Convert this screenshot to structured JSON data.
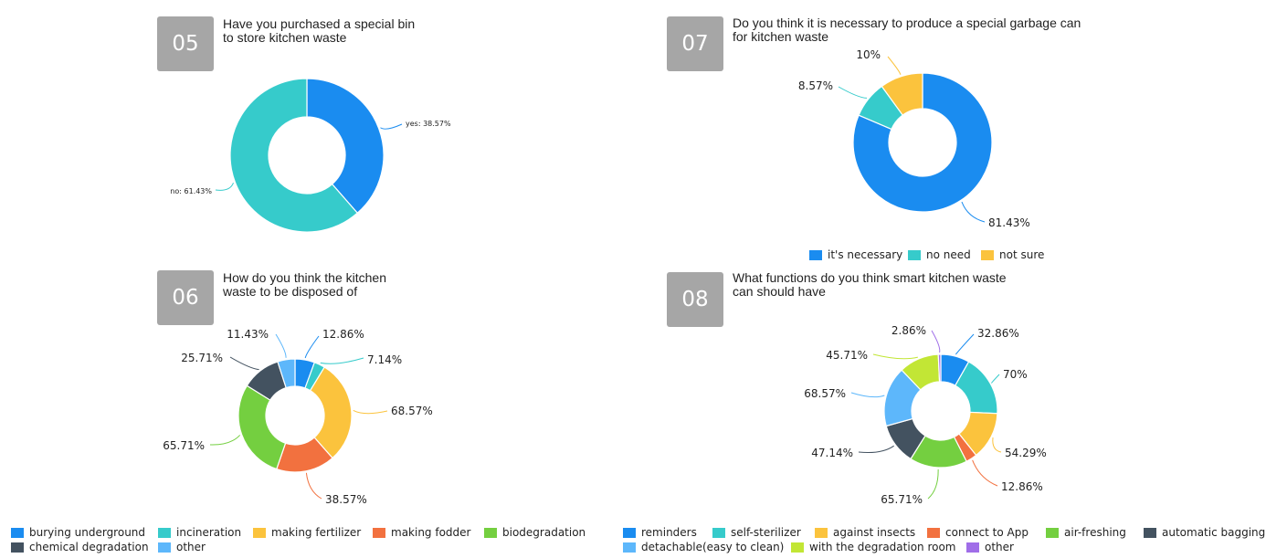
{
  "panels": [
    {
      "number": "05",
      "title": "Have you purchased a special bin\nto store kitchen waste"
    },
    {
      "number": "07",
      "title": "Do you think it is necessary to produce a special garbage can\nfor kitchen waste"
    },
    {
      "number": "06",
      "title": "How do you think the kitchen\nwaste to be disposed of"
    },
    {
      "number": "08",
      "title": "What functions do you think smart kitchen waste\ncan should have"
    }
  ],
  "colors": {
    "blue": "#1a8cf0",
    "teal": "#36cbcb",
    "yellow": "#fbc33d",
    "orange": "#f2713f",
    "green": "#74cf40",
    "slate": "#435260",
    "lightblue": "#5db7fb",
    "lime": "#c2e635",
    "purple": "#a06ee8",
    "gray": "#a6a6a6"
  },
  "chart_data": [
    {
      "id": "q05",
      "type": "pie",
      "donut": true,
      "series": [
        {
          "values": [
            38.57,
            61.43
          ]
        }
      ],
      "categories": [
        "yes",
        "no"
      ],
      "labels": [
        "yes: 38.57%",
        "no: 61.43%"
      ],
      "colors": [
        "#1a8cf0",
        "#36cbcb"
      ]
    },
    {
      "id": "q07",
      "type": "pie",
      "donut": true,
      "categories": [
        "it's necessary",
        "no need",
        "not sure"
      ],
      "values": [
        81.43,
        8.57,
        10
      ],
      "labels": [
        "81.43%",
        "8.57%",
        "10%"
      ],
      "colors": [
        "#1a8cf0",
        "#36cbcb",
        "#fbc33d"
      ],
      "legend": [
        "it's necessary",
        "no need",
        "not sure"
      ],
      "legend_position": "bottom"
    },
    {
      "id": "q06",
      "type": "pie",
      "donut": true,
      "categories": [
        "burying underground",
        "incineration",
        "making fertilizer",
        "making fodder",
        "biodegradation",
        "chemical degradation",
        "other"
      ],
      "values": [
        12.86,
        7.14,
        68.57,
        38.57,
        65.71,
        25.71,
        11.43
      ],
      "labels": [
        "12.86%",
        "7.14%",
        "68.57%",
        "38.57%",
        "65.71%",
        "25.71%",
        "11.43%"
      ],
      "colors": [
        "#1a8cf0",
        "#36cbcb",
        "#fbc33d",
        "#f2713f",
        "#74cf40",
        "#435260",
        "#5db7fb"
      ],
      "legend": [
        "burying underground",
        "incineration",
        "making fertilizer",
        "making fodder",
        "biodegradation",
        "chemical degradation",
        "other"
      ],
      "legend_position": "bottom"
    },
    {
      "id": "q08",
      "type": "pie",
      "donut": true,
      "categories": [
        "reminders",
        "self-sterilizer",
        "against insects",
        "connect to App",
        "air-freshing",
        "automatic bagging",
        "detachable(easy to clean)",
        "with the degradation room",
        "other"
      ],
      "values": [
        32.86,
        70,
        54.29,
        12.86,
        65.71,
        47.14,
        68.57,
        45.71,
        2.86
      ],
      "labels": [
        "32.86%",
        "70%",
        "54.29%",
        "12.86%",
        "65.71%",
        "47.14%",
        "68.57%",
        "45.71%",
        "2.86%"
      ],
      "colors": [
        "#1a8cf0",
        "#36cbcb",
        "#fbc33d",
        "#f2713f",
        "#74cf40",
        "#435260",
        "#5db7fb",
        "#c2e635",
        "#a06ee8"
      ],
      "legend": [
        "reminders",
        "self-sterilizer",
        "against insects",
        "connect to App",
        "air-freshing",
        "automatic bagging",
        "detachable(easy to clean)",
        "with the degradation room",
        "other"
      ],
      "legend_position": "bottom"
    }
  ]
}
